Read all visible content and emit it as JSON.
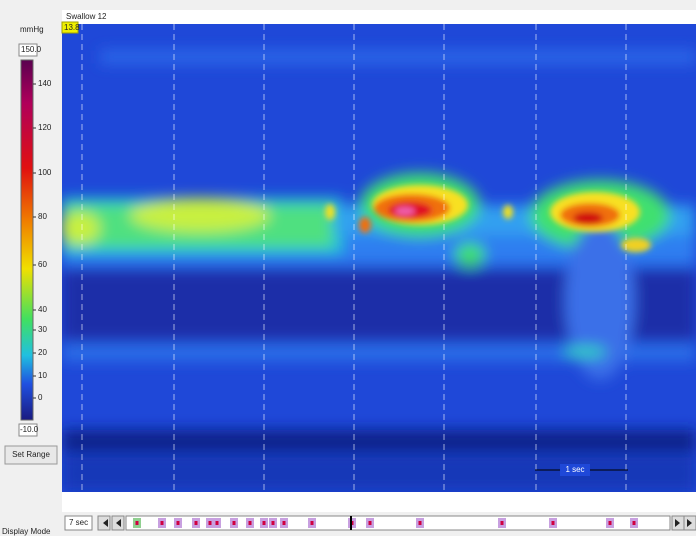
{
  "panel": {
    "unit": "mmHg",
    "max": "150.0",
    "min": "-10.0",
    "labels": [
      "140",
      "120",
      "100",
      "80",
      "60",
      "40",
      "30",
      "20",
      "10",
      "0"
    ],
    "button": "Set Range",
    "mode": "Display Mode"
  },
  "plot": {
    "title": "Swallow 12",
    "marker": "13.8",
    "scale_note": "1 sec"
  },
  "toolbar": {
    "window": "7 sec"
  }
}
